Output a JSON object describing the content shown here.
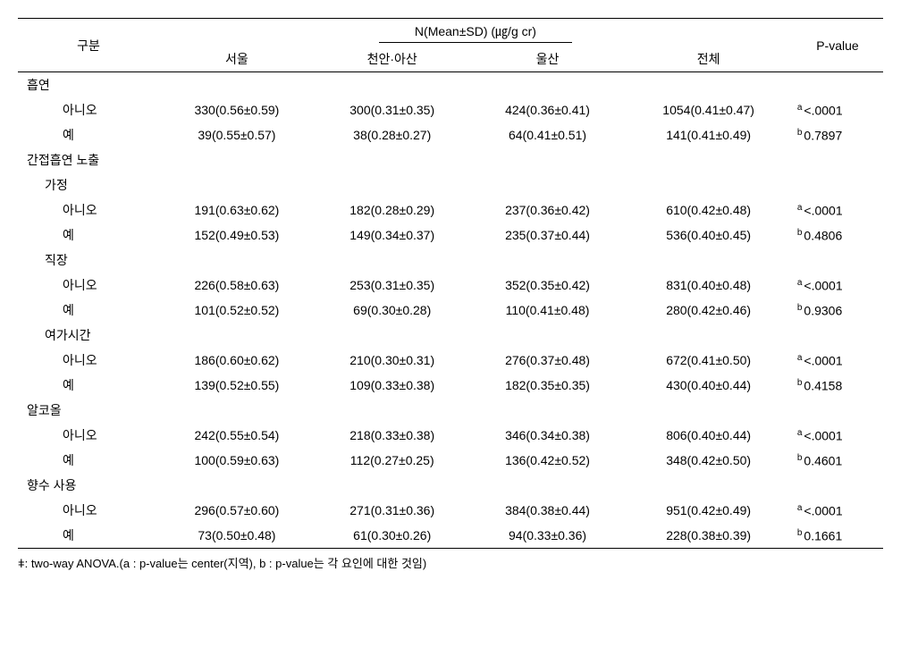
{
  "header": {
    "category": "구분",
    "metric": "N(Mean±SD) (㎍/g cr)",
    "pvalue": "P-value",
    "cols": [
      "서울",
      "천안·아산",
      "울산",
      "전체"
    ]
  },
  "sections": [
    {
      "label": "흡연",
      "indent": 0,
      "rows": [
        {
          "label": "아니오",
          "indent": 2,
          "vals": [
            "330(0.56±0.59)",
            "300(0.31±0.35)",
            "424(0.36±0.41)",
            "1054(0.41±0.47)"
          ],
          "sup": "a",
          "p": "<.0001"
        },
        {
          "label": "예",
          "indent": 2,
          "vals": [
            "39(0.55±0.57)",
            "38(0.28±0.27)",
            "64(0.41±0.51)",
            "141(0.41±0.49)"
          ],
          "sup": "b",
          "p": "0.7897"
        }
      ]
    },
    {
      "label": "간접흡연 노출",
      "indent": 0,
      "rows": []
    },
    {
      "label": "가정",
      "indent": 1,
      "rows": [
        {
          "label": "아니오",
          "indent": 2,
          "vals": [
            "191(0.63±0.62)",
            "182(0.28±0.29)",
            "237(0.36±0.42)",
            "610(0.42±0.48)"
          ],
          "sup": "a",
          "p": "<.0001"
        },
        {
          "label": "예",
          "indent": 2,
          "vals": [
            "152(0.49±0.53)",
            "149(0.34±0.37)",
            "235(0.37±0.44)",
            "536(0.40±0.45)"
          ],
          "sup": "b",
          "p": "0.4806"
        }
      ]
    },
    {
      "label": "직장",
      "indent": 1,
      "rows": [
        {
          "label": "아니오",
          "indent": 2,
          "vals": [
            "226(0.58±0.63)",
            "253(0.31±0.35)",
            "352(0.35±0.42)",
            "831(0.40±0.48)"
          ],
          "sup": "a",
          "p": "<.0001"
        },
        {
          "label": "예",
          "indent": 2,
          "vals": [
            "101(0.52±0.52)",
            "69(0.30±0.28)",
            "110(0.41±0.48)",
            "280(0.42±0.46)"
          ],
          "sup": "b",
          "p": "0.9306"
        }
      ]
    },
    {
      "label": "여가시간",
      "indent": 1,
      "rows": [
        {
          "label": "아니오",
          "indent": 2,
          "vals": [
            "186(0.60±0.62)",
            "210(0.30±0.31)",
            "276(0.37±0.48)",
            "672(0.41±0.50)"
          ],
          "sup": "a",
          "p": "<.0001"
        },
        {
          "label": "예",
          "indent": 2,
          "vals": [
            "139(0.52±0.55)",
            "109(0.33±0.38)",
            "182(0.35±0.35)",
            "430(0.40±0.44)"
          ],
          "sup": "b",
          "p": "0.4158"
        }
      ]
    },
    {
      "label": "알코올",
      "indent": 0,
      "rows": [
        {
          "label": "아니오",
          "indent": 2,
          "vals": [
            "242(0.55±0.54)",
            "218(0.33±0.38)",
            "346(0.34±0.38)",
            "806(0.40±0.44)"
          ],
          "sup": "a",
          "p": "<.0001"
        },
        {
          "label": "예",
          "indent": 2,
          "vals": [
            "100(0.59±0.63)",
            "112(0.27±0.25)",
            "136(0.42±0.52)",
            "348(0.42±0.50)"
          ],
          "sup": "b",
          "p": "0.4601"
        }
      ]
    },
    {
      "label": "향수 사용",
      "indent": 0,
      "rows": [
        {
          "label": "아니오",
          "indent": 2,
          "vals": [
            "296(0.57±0.60)",
            "271(0.31±0.36)",
            "384(0.38±0.44)",
            "951(0.42±0.49)"
          ],
          "sup": "a",
          "p": "<.0001"
        },
        {
          "label": "예",
          "indent": 2,
          "vals": [
            "73(0.50±0.48)",
            "61(0.30±0.26)",
            "94(0.33±0.36)",
            "228(0.38±0.39)"
          ],
          "sup": "b",
          "p": "0.1661"
        }
      ]
    }
  ],
  "footnote": "ǂ: two-way ANOVA.(a : p-value는 center(지역), b : p-value는 각 요인에 대한 것임)"
}
